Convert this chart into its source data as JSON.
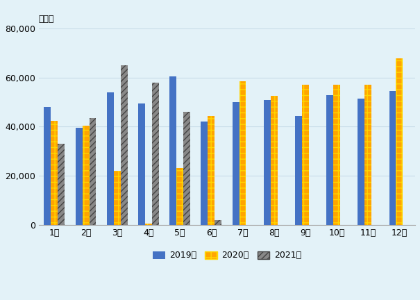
{
  "months": [
    "1月",
    "2月",
    "3月",
    "4月",
    "5月",
    "6月",
    "7月",
    "8月",
    "9月",
    "10月",
    "11月",
    "12月"
  ],
  "y2019": [
    48000,
    39500,
    54000,
    49500,
    60500,
    42000,
    50000,
    51000,
    44500,
    53000,
    51500,
    54500
  ],
  "y2020": [
    42500,
    40500,
    22000,
    500,
    23000,
    44500,
    58500,
    52500,
    57000,
    57000,
    57000,
    68000
  ],
  "y2021": [
    33000,
    43500,
    65000,
    58000,
    46000,
    2000,
    0,
    0,
    0,
    0,
    0,
    0
  ],
  "y2021_has_data": [
    true,
    true,
    true,
    true,
    true,
    true,
    false,
    false,
    false,
    false,
    false,
    false
  ],
  "bar_color_2019": "#4472C4",
  "bar_color_2020_base": "#FFA500",
  "bar_color_2020_check": "#FFD700",
  "ylabel": "（台）",
  "ylim": [
    0,
    80000
  ],
  "yticks": [
    0,
    20000,
    40000,
    60000,
    80000
  ],
  "legend_labels": [
    "2019年",
    "2020年",
    "2021年"
  ],
  "tick_fontsize": 9,
  "bar_width": 0.22,
  "background_color": "#E3F2F8"
}
